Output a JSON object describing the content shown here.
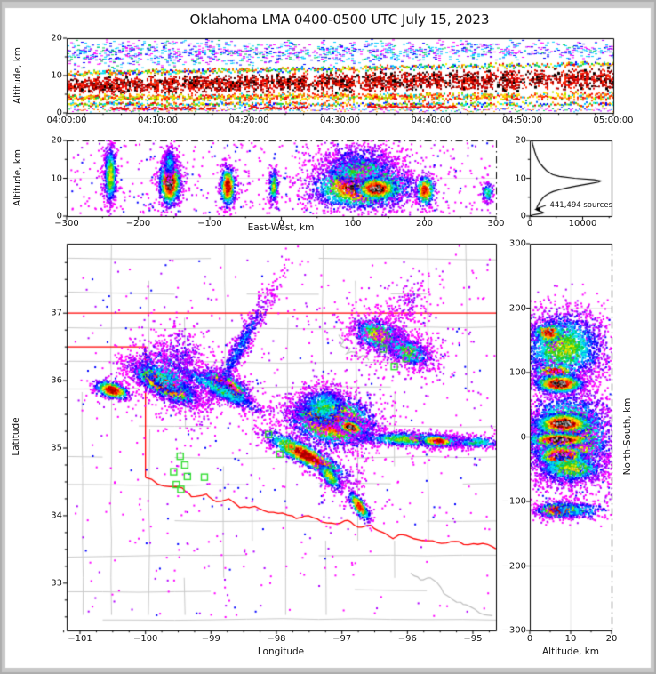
{
  "title": "Oklahoma LMA 0400-0500 UTC July 15, 2023",
  "palette": [
    "#ff00ff",
    "#b000ff",
    "#6600ff",
    "#0000ff",
    "#0066ff",
    "#00ccff",
    "#00eedd",
    "#00cc55",
    "#44cc00",
    "#aadd00",
    "#ffee00",
    "#ffaa00",
    "#ff6600",
    "#ff2200",
    "#ee0000",
    "#aa0000"
  ],
  "accent_colors": {
    "state_border": "#ff0000",
    "county_line": "#cacaca",
    "river_gray": "#bfbfbf",
    "station": "#33dd33",
    "grid": "#e7e7e7"
  },
  "chart_data": [
    {
      "id": "time_height",
      "type": "heatmap",
      "ylabel": "Altitude, km",
      "y_ticks": {
        "values": [
          0,
          10,
          20
        ],
        "labels": [
          "0",
          "10",
          "20"
        ]
      },
      "x_ticks": {
        "values": [
          0,
          1,
          2,
          3,
          4,
          5,
          6
        ],
        "labels": [
          "04:00:00",
          "04:10:00",
          "04:20:00",
          "04:30:00",
          "04:40:00",
          "04:50:00",
          "05:00:00"
        ]
      },
      "alt_range_km": [
        0,
        20
      ],
      "bands": [
        {
          "pal": "cool",
          "d": 0.34
        },
        {
          "pal": "mix",
          "d": 0.6
        },
        {
          "pal": "hot",
          "d": 1.15
        },
        {
          "pal": "warm",
          "d": 0.9
        },
        {
          "pal": "mix",
          "d": 0.5
        },
        {
          "pal": "low",
          "d": 0.32
        }
      ],
      "gaps": [
        [
          0.435,
          0.458,
          0.35
        ],
        [
          0.53,
          0.545,
          0.4
        ],
        [
          0.6,
          0.615,
          0.5
        ],
        [
          0.685,
          0.705,
          0.3
        ],
        [
          0.775,
          0.795,
          0.35
        ],
        [
          0.83,
          0.855,
          0.3
        ],
        [
          0.885,
          0.91,
          0.5
        ],
        [
          0.955,
          0.97,
          0.6
        ]
      ],
      "streaks": [
        {
          "t": [
            0.08,
            0.27
          ],
          "alt": 1.4
        },
        {
          "t": [
            0.33,
            0.44
          ],
          "alt": 1.6
        },
        {
          "t": [
            0.55,
            0.71
          ],
          "alt": 1.8
        }
      ]
    },
    {
      "id": "east_west",
      "type": "heatmap",
      "ylabel": "Altitude, km",
      "xlabel": "East-West, km",
      "x_ticks": {
        "values": [
          -300,
          -200,
          -100,
          0,
          100,
          200,
          300
        ],
        "labels": [
          "−300",
          "−200",
          "−100",
          "0",
          "100",
          "200",
          "300"
        ]
      },
      "y_ticks": {
        "values": [
          0,
          10,
          20
        ],
        "labels": [
          "0",
          "10",
          "20"
        ]
      },
      "blobs": [
        {
          "c": [
            -240,
            11
          ],
          "s": [
            4.5,
            4.2
          ],
          "a": 0,
          "n": 650,
          "hot": 0.6
        },
        {
          "c": [
            -157,
            9
          ],
          "s": [
            8,
            3.2
          ],
          "a": 0,
          "n": 1100,
          "hot": 1.0
        },
        {
          "c": [
            -157,
            14.5
          ],
          "s": [
            5,
            2.2
          ],
          "a": 0,
          "n": 260,
          "hot": 0.35
        },
        {
          "c": [
            -76,
            8
          ],
          "s": [
            5.5,
            2.8
          ],
          "a": 0,
          "n": 550,
          "hot": 0.92
        },
        {
          "c": [
            -12,
            8
          ],
          "s": [
            3.5,
            2.4
          ],
          "a": 0,
          "n": 220,
          "hot": 0.55
        },
        {
          "c": [
            112,
            8
          ],
          "s": [
            36,
            3.0
          ],
          "a": 0,
          "n": 2600,
          "hot": 1.0
        },
        {
          "c": [
            108,
            12.5
          ],
          "s": [
            28,
            2.2
          ],
          "a": 0,
          "n": 800,
          "hot": 0.5
        },
        {
          "c": [
            106,
            15.5
          ],
          "s": [
            32,
            2.2
          ],
          "a": 0,
          "n": 420,
          "hot": 0.22
        },
        {
          "c": [
            132,
            7.5
          ],
          "s": [
            16,
            1.7
          ],
          "a": 0,
          "n": 700,
          "hot": 1.0
        },
        {
          "c": [
            200,
            7
          ],
          "s": [
            7,
            2.2
          ],
          "a": 0,
          "n": 350,
          "hot": 0.85
        },
        {
          "c": [
            287,
            6.5
          ],
          "s": [
            4.5,
            1.4
          ],
          "a": 0,
          "n": 110,
          "hot": 0.45
        }
      ],
      "noise_n": 600
    },
    {
      "id": "altitude_histogram",
      "type": "line",
      "x_ticks": {
        "values": [
          0,
          10000
        ],
        "labels": [
          "0",
          "10000"
        ]
      },
      "y_ticks": {
        "values": [
          0,
          10,
          20
        ],
        "labels": [
          "0",
          "10",
          "20"
        ]
      },
      "annotation": "441,494 sources",
      "curve_alt_count": [
        [
          20,
          380
        ],
        [
          19,
          550
        ],
        [
          18,
          750
        ],
        [
          17,
          950
        ],
        [
          16,
          1200
        ],
        [
          15,
          1500
        ],
        [
          14,
          1900
        ],
        [
          13,
          2500
        ],
        [
          12,
          3200
        ],
        [
          11,
          4300
        ],
        [
          10.5,
          5600
        ],
        [
          10,
          8500
        ],
        [
          9.6,
          12200
        ],
        [
          9.3,
          13400
        ],
        [
          9,
          13000
        ],
        [
          8.6,
          11500
        ],
        [
          8.2,
          9800
        ],
        [
          7.8,
          8200
        ],
        [
          7.4,
          6800
        ],
        [
          7,
          5600
        ],
        [
          6.5,
          4400
        ],
        [
          6,
          3600
        ],
        [
          5.5,
          3000
        ],
        [
          5,
          2600
        ],
        [
          4.5,
          2300
        ],
        [
          4,
          2000
        ],
        [
          3.5,
          1800
        ],
        [
          3,
          1600
        ],
        [
          2.5,
          1400
        ],
        [
          2,
          1300
        ],
        [
          1.6,
          1400
        ],
        [
          1.2,
          2100
        ],
        [
          0.9,
          2600
        ],
        [
          0.7,
          2300
        ],
        [
          0.5,
          1400
        ],
        [
          0.3,
          600
        ],
        [
          0.1,
          150
        ],
        [
          0,
          60
        ]
      ]
    },
    {
      "id": "plan_view",
      "type": "map-heatmap",
      "xlabel": "Longitude",
      "ylabel": "Latitude",
      "x_ticks": {
        "values": [
          -101,
          -100,
          -99,
          -98,
          -97,
          -96,
          -95
        ],
        "labels": [
          "−101",
          "−100",
          "−99",
          "−98",
          "−97",
          "−96",
          "−95"
        ]
      },
      "y_ticks": {
        "values": [
          33,
          34,
          35,
          36,
          37
        ],
        "labels": [
          "33",
          "34",
          "35",
          "36",
          "37"
        ]
      },
      "lon_range": [
        -101.204,
        -94.647
      ],
      "lat_range": [
        32.3,
        38.03
      ],
      "state_borders": [
        [
          [
            -101.204,
            37
          ],
          [
            -94.647,
            37
          ]
        ],
        [
          [
            -101.204,
            36.5
          ],
          [
            -100,
            36.5
          ],
          [
            -100,
            34.565
          ]
        ]
      ],
      "red_river": [
        [
          -100,
          34.565
        ],
        [
          -99.72,
          34.44
        ],
        [
          -99.44,
          34.41
        ],
        [
          -99.3,
          34.28
        ],
        [
          -99.07,
          34.32
        ],
        [
          -98.92,
          34.21
        ],
        [
          -98.73,
          34.25
        ],
        [
          -98.56,
          34.12
        ],
        [
          -98.33,
          34.14
        ],
        [
          -98.12,
          34.05
        ],
        [
          -97.91,
          34.04
        ],
        [
          -97.7,
          33.96
        ],
        [
          -97.51,
          34.0
        ],
        [
          -97.31,
          33.91
        ],
        [
          -97.1,
          33.88
        ],
        [
          -96.91,
          33.93
        ],
        [
          -96.75,
          33.83
        ],
        [
          -96.56,
          33.86
        ],
        [
          -96.37,
          33.75
        ],
        [
          -96.22,
          33.66
        ],
        [
          -96.09,
          33.72
        ],
        [
          -95.9,
          33.66
        ],
        [
          -95.69,
          33.63
        ],
        [
          -95.48,
          33.59
        ],
        [
          -95.27,
          33.62
        ],
        [
          -95.07,
          33.57
        ],
        [
          -94.85,
          33.59
        ],
        [
          -94.65,
          33.51
        ]
      ],
      "gray_rivers": [
        [
          [
            -97.05,
            36.68
          ],
          [
            -96.97,
            36.6
          ],
          [
            -97.02,
            36.52
          ],
          [
            -96.88,
            36.48
          ],
          [
            -96.93,
            36.4
          ],
          [
            -96.8,
            36.42
          ],
          [
            -96.74,
            36.33
          ],
          [
            -96.65,
            36.37
          ],
          [
            -96.59,
            36.3
          ]
        ],
        [
          [
            -95.95,
            33.15
          ],
          [
            -95.8,
            33.05
          ],
          [
            -95.65,
            33.08
          ],
          [
            -95.5,
            32.95
          ],
          [
            -95.4,
            32.82
          ],
          [
            -95.25,
            32.72
          ],
          [
            -95.1,
            32.68
          ],
          [
            -94.9,
            32.56
          ],
          [
            -94.7,
            32.52
          ]
        ]
      ],
      "stations": [
        [
          -99.47,
          34.88
        ],
        [
          -99.57,
          34.65
        ],
        [
          -99.4,
          34.75
        ],
        [
          -99.36,
          34.58
        ],
        [
          -99.53,
          34.46
        ],
        [
          -99.46,
          34.39
        ],
        [
          -99.1,
          34.57
        ],
        [
          -98.12,
          35.2
        ],
        [
          -97.77,
          35.03
        ],
        [
          -97.95,
          34.91
        ],
        [
          -96.37,
          36.47
        ],
        [
          -96.2,
          36.21
        ],
        [
          -96.02,
          36.33
        ]
      ],
      "blobs": [
        {
          "c": [
            -100.52,
            35.87
          ],
          "s": [
            0.14,
            0.06
          ],
          "a": -15,
          "n": 550,
          "hot": 0.95
        },
        {
          "c": [
            -99.73,
            35.96
          ],
          "s": [
            0.28,
            0.09
          ],
          "a": -28,
          "n": 2000,
          "hot": 1.0
        },
        {
          "c": [
            -99.66,
            36.08
          ],
          "s": [
            0.34,
            0.22
          ],
          "a": -25,
          "n": 900,
          "hot": 0.35
        },
        {
          "c": [
            -99.45,
            36.38
          ],
          "s": [
            0.2,
            0.26
          ],
          "a": 10,
          "n": 300,
          "hot": 0.15
        },
        {
          "c": [
            -98.78,
            35.92
          ],
          "s": [
            0.2,
            0.09
          ],
          "a": -30,
          "n": 1200,
          "hot": 1.0
        },
        {
          "c": [
            -98.6,
            36.45
          ],
          "s": [
            0.6,
            0.07
          ],
          "a": 60,
          "n": 800,
          "hot": 0.25
        },
        {
          "c": [
            -98.88,
            35.88
          ],
          "s": [
            0.45,
            0.07
          ],
          "a": -27,
          "n": 650,
          "hot": 0.4
        },
        {
          "c": [
            -96.45,
            36.68
          ],
          "s": [
            0.22,
            0.13
          ],
          "a": -20,
          "n": 850,
          "hot": 0.6
        },
        {
          "c": [
            -96.0,
            36.45
          ],
          "s": [
            0.22,
            0.1
          ],
          "a": -25,
          "n": 650,
          "hot": 0.5
        },
        {
          "c": [
            -96.2,
            36.55
          ],
          "s": [
            0.42,
            0.26
          ],
          "a": -30,
          "n": 420,
          "hot": 0.1
        },
        {
          "c": [
            -97.15,
            35.42
          ],
          "s": [
            0.34,
            0.2
          ],
          "a": -8,
          "n": 2800,
          "hot": 0.9
        },
        {
          "c": [
            -97.25,
            35.47
          ],
          "s": [
            0.27,
            0.055
          ],
          "a": -10,
          "n": 1200,
          "hot": 1.0
        },
        {
          "c": [
            -96.88,
            35.32
          ],
          "s": [
            0.11,
            0.05
          ],
          "a": -20,
          "n": 500,
          "hot": 1.0
        },
        {
          "c": [
            -97.3,
            35.62
          ],
          "s": [
            0.2,
            0.16
          ],
          "a": 0,
          "n": 700,
          "hot": 0.45
        },
        {
          "c": [
            -95.9,
            35.14
          ],
          "s": [
            0.5,
            0.055
          ],
          "a": -2,
          "n": 1100,
          "hot": 0.55
        },
        {
          "c": [
            -95.55,
            35.12
          ],
          "s": [
            0.16,
            0.045
          ],
          "a": -5,
          "n": 400,
          "hot": 0.85
        },
        {
          "c": [
            -94.95,
            35.1
          ],
          "s": [
            0.22,
            0.05
          ],
          "a": 0,
          "n": 240,
          "hot": 0.4
        },
        {
          "c": [
            -97.55,
            34.9
          ],
          "s": [
            0.36,
            0.08
          ],
          "a": -27,
          "n": 1300,
          "hot": 0.95
        },
        {
          "c": [
            -97.2,
            34.6
          ],
          "s": [
            0.14,
            0.06
          ],
          "a": -50,
          "n": 320,
          "hot": 0.6
        },
        {
          "c": [
            -96.75,
            34.15
          ],
          "s": [
            0.14,
            0.05
          ],
          "a": -55,
          "n": 350,
          "hot": 0.8
        },
        {
          "c": [
            -96.0,
            37.15
          ],
          "s": [
            0.2,
            0.15
          ],
          "a": 45,
          "n": 140,
          "hot": 0.08
        }
      ],
      "noise_n": 900
    },
    {
      "id": "north_south",
      "type": "heatmap",
      "xlabel": "Altitude, km",
      "ylabel": "North-South, km",
      "x_ticks": {
        "values": [
          0,
          10,
          20
        ],
        "labels": [
          "0",
          "10",
          "20"
        ]
      },
      "y_ticks": {
        "values": [
          300,
          200,
          100,
          0,
          -100,
          -200,
          -300
        ],
        "labels": [
          "300",
          "200",
          "100",
          "0",
          "−100",
          "−200",
          "−300"
        ]
      },
      "blobs": [
        {
          "c": [
            8,
            140
          ],
          "s": [
            5.5,
            30
          ],
          "a": 0,
          "n": 2200,
          "hot": 0.55
        },
        {
          "c": [
            4.5,
            163
          ],
          "s": [
            2.2,
            9
          ],
          "a": 0,
          "n": 260,
          "hot": 0.88
        },
        {
          "c": [
            6,
            103
          ],
          "s": [
            3,
            7
          ],
          "a": 0,
          "n": 240,
          "hot": 0.9
        },
        {
          "c": [
            9,
            0
          ],
          "s": [
            5.5,
            36
          ],
          "a": 0,
          "n": 3800,
          "hot": 0.8
        },
        {
          "c": [
            7,
            84
          ],
          "s": [
            3.2,
            8
          ],
          "a": 0,
          "n": 800,
          "hot": 1.0
        },
        {
          "c": [
            8,
            22
          ],
          "s": [
            3.8,
            9
          ],
          "a": 0,
          "n": 900,
          "hot": 1.0
        },
        {
          "c": [
            7,
            -3
          ],
          "s": [
            4.5,
            6
          ],
          "a": 0,
          "n": 700,
          "hot": 1.0
        },
        {
          "c": [
            7.5,
            -28
          ],
          "s": [
            3.2,
            10
          ],
          "a": 0,
          "n": 850,
          "hot": 1.0
        },
        {
          "c": [
            10,
            -47
          ],
          "s": [
            4.5,
            12
          ],
          "a": 0,
          "n": 600,
          "hot": 0.6
        },
        {
          "c": [
            7,
            -112
          ],
          "s": [
            3,
            6
          ],
          "a": 0,
          "n": 700,
          "hot": 0.95
        },
        {
          "c": [
            11,
            -112
          ],
          "s": [
            5.5,
            8
          ],
          "a": 0,
          "n": 280,
          "hot": 0.35
        }
      ],
      "noise_n": 650
    }
  ]
}
